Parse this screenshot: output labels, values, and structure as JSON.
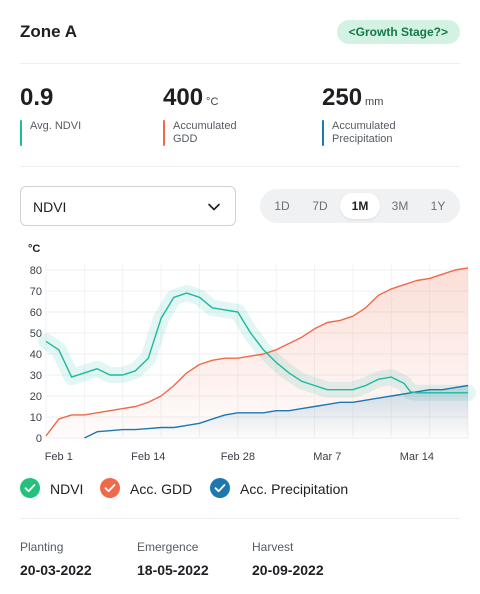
{
  "header": {
    "title": "Zone A",
    "badge": "<Growth Stage?>"
  },
  "metrics": [
    {
      "value": "0.9",
      "unit": "",
      "label_lines": [
        "Avg. NDVI"
      ],
      "color": "#1db9a0"
    },
    {
      "value": "400",
      "unit": "°C",
      "label_lines": [
        "Accumulated",
        "GDD"
      ],
      "color": "#f0694a"
    },
    {
      "value": "250",
      "unit": "mm",
      "label_lines": [
        "Accumulated",
        "Precipitation"
      ],
      "color": "#1e78b0"
    }
  ],
  "controls": {
    "select_value": "NDVI",
    "ranges": [
      "1D",
      "7D",
      "1M",
      "3M",
      "1Y"
    ],
    "active_range": "1M"
  },
  "chart_data": {
    "type": "line",
    "ylabel": "°C",
    "yticks": [
      0,
      10,
      20,
      30,
      40,
      50,
      60,
      70,
      80
    ],
    "ylim": [
      0,
      80
    ],
    "xlim": [
      0,
      33
    ],
    "xtick_labels": [
      "Feb 1",
      "Feb 14",
      "Feb 28",
      "Mar 7",
      "Mar 14"
    ],
    "xtick_pos": [
      1,
      8,
      15,
      22,
      29
    ],
    "grid": true,
    "series": [
      {
        "name": "NDVI",
        "color": "#1db9a0",
        "x": [
          0,
          1,
          2,
          3,
          4,
          5,
          6,
          7,
          8,
          9,
          10,
          11,
          12,
          13,
          14,
          15,
          16,
          17,
          18,
          19,
          20,
          21,
          22,
          23,
          24,
          25,
          26,
          27,
          28,
          28.5,
          29,
          30,
          31,
          32,
          33
        ],
        "y": [
          46,
          42,
          29,
          31,
          33,
          30,
          30,
          32,
          38,
          57,
          67,
          69,
          67,
          62,
          61,
          60,
          50,
          42,
          36,
          31,
          27,
          25,
          23,
          23,
          23,
          25,
          28,
          29,
          26,
          22,
          21.5,
          21.5,
          21.5,
          21.5,
          21.5
        ]
      },
      {
        "name": "Acc. GDD",
        "color": "#f0694a",
        "x": [
          0,
          1,
          2,
          3,
          4,
          5,
          6,
          7,
          8,
          9,
          10,
          11,
          12,
          13,
          14,
          15,
          16,
          17,
          18,
          19,
          20,
          21,
          22,
          23,
          24,
          25,
          26,
          27,
          28,
          29,
          30,
          31,
          32,
          33
        ],
        "y": [
          1,
          9,
          11,
          11,
          12,
          13,
          14,
          15,
          17,
          20,
          25,
          31,
          35,
          37,
          38,
          38,
          39,
          40,
          42,
          45,
          48,
          52,
          55,
          56,
          58,
          62,
          68,
          71,
          73,
          75,
          76,
          78,
          80,
          81
        ]
      },
      {
        "name": "Acc. Precipitation",
        "color": "#1e78b0",
        "x": [
          3,
          4,
          5,
          6,
          7,
          8,
          9,
          10,
          11,
          12,
          13,
          14,
          15,
          16,
          17,
          18,
          19,
          20,
          21,
          22,
          23,
          24,
          25,
          26,
          27,
          28,
          29,
          30,
          31,
          32,
          33
        ],
        "y": [
          0,
          3,
          3.5,
          4,
          4,
          4.5,
          5,
          5,
          6,
          7,
          9,
          11,
          12,
          12,
          12,
          13,
          13,
          14,
          15,
          16,
          17,
          17,
          18,
          19,
          20,
          21,
          22,
          23,
          23,
          24,
          25
        ]
      }
    ]
  },
  "legend": [
    {
      "label": "NDVI",
      "color": "#22c17c"
    },
    {
      "label": "Acc. GDD",
      "color": "#f0694a"
    },
    {
      "label": "Acc. Precipitation",
      "color": "#1e78b0"
    }
  ],
  "dates": [
    {
      "label": "Planting",
      "value": "20-03-2022"
    },
    {
      "label": "Emergence",
      "value": "18-05-2022"
    },
    {
      "label": "Harvest",
      "value": "20-09-2022"
    }
  ]
}
